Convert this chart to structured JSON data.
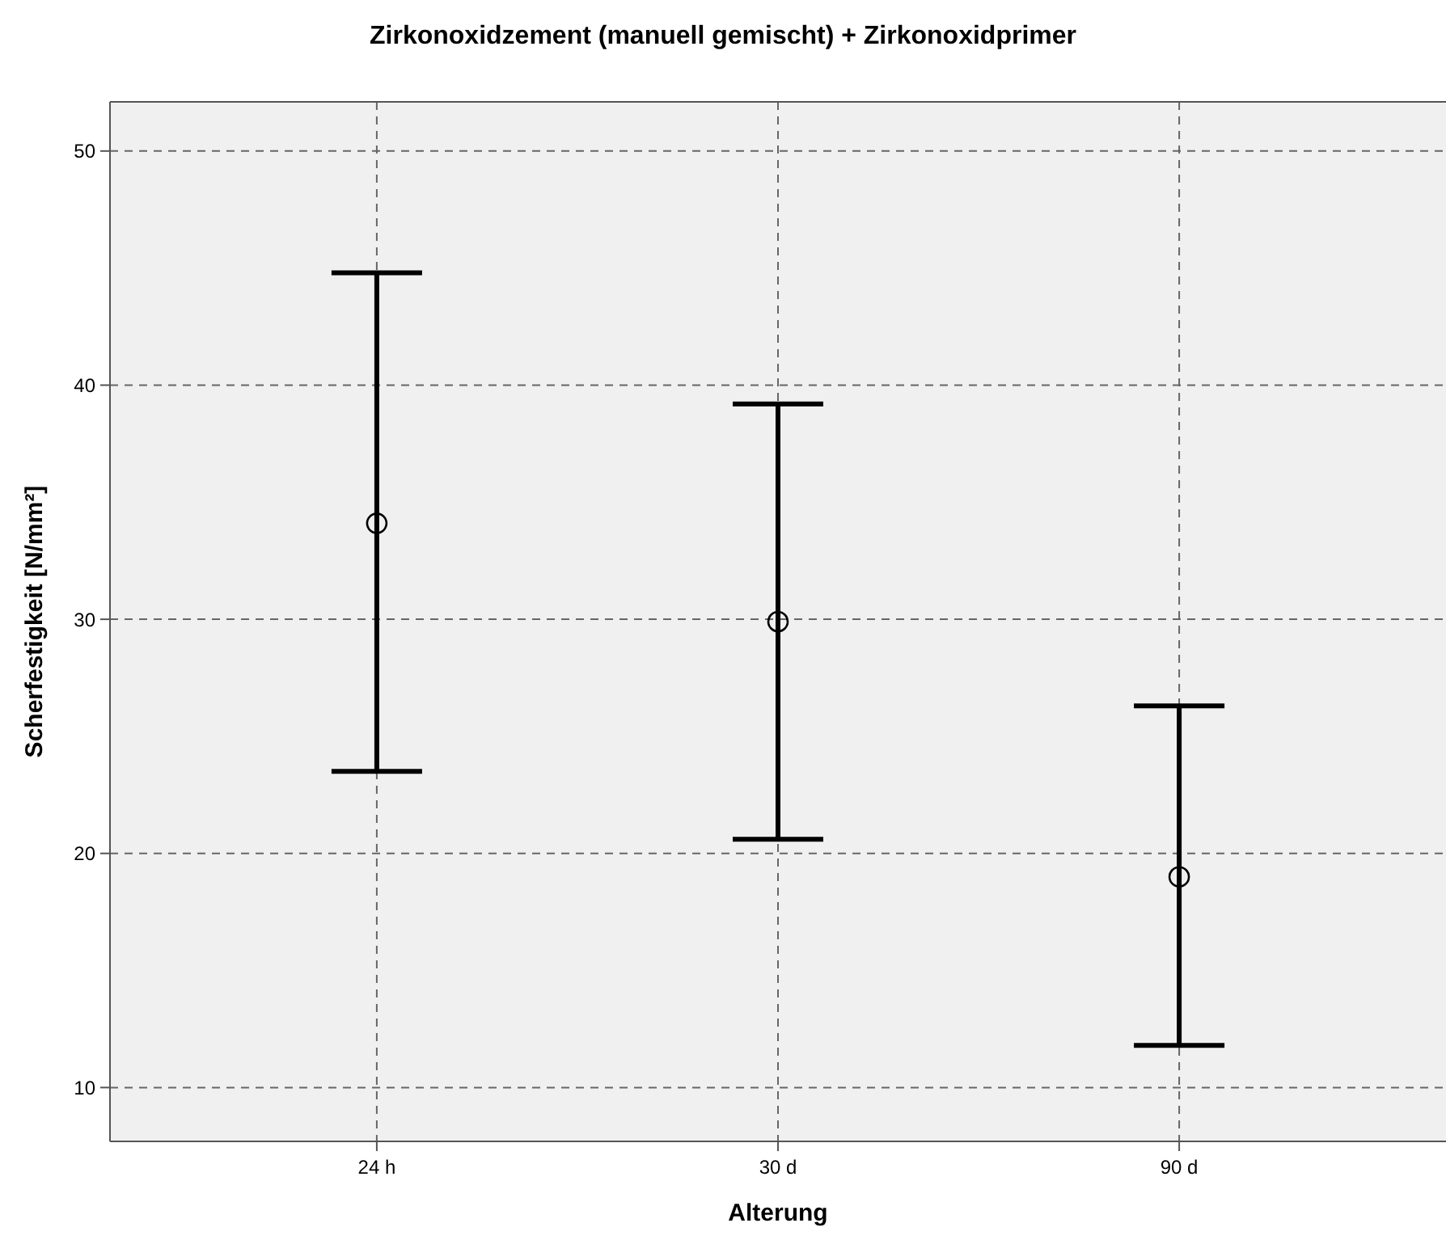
{
  "chart_data": {
    "type": "scatter",
    "title": "Zirkonoxidzement (manuell gemischt) + Zirkonoxidprimer",
    "xlabel": "Alterung",
    "ylabel": "Scherfestigkeit [N/mm²]",
    "categories": [
      "24 h",
      "30 d",
      "90 d"
    ],
    "values": [
      34.1,
      29.9,
      19.0
    ],
    "errors": [
      [
        23.5,
        44.8
      ],
      [
        20.6,
        39.2
      ],
      [
        11.8,
        26.3
      ]
    ],
    "color": "#000000",
    "marker": "circle",
    "ylim": [
      7.7,
      52.1
    ],
    "yticks": [
      10,
      20,
      30,
      40,
      50
    ],
    "grid": true
  }
}
